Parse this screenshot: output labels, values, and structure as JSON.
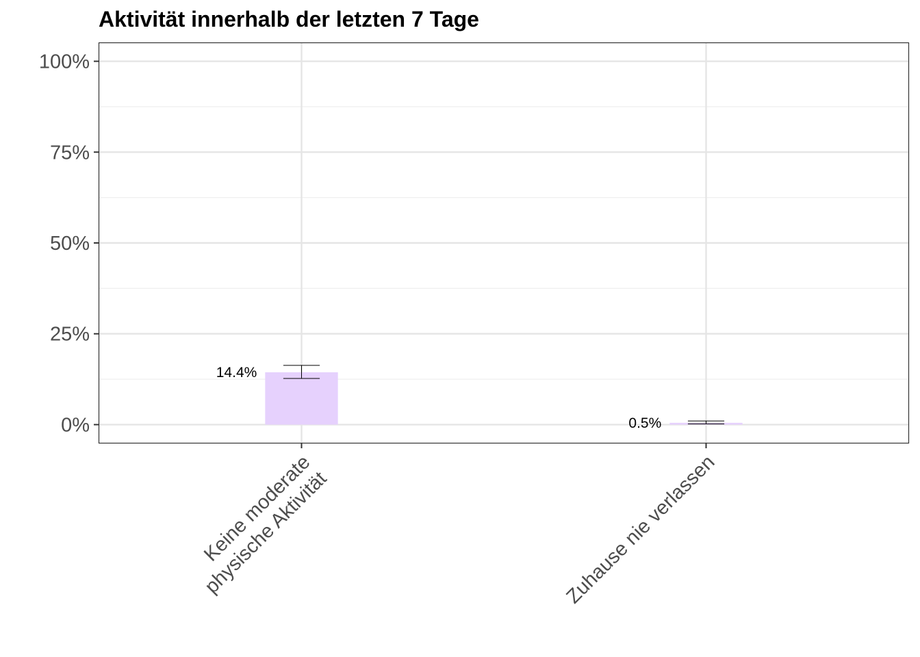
{
  "chart_data": {
    "type": "bar",
    "title": "Aktivität innerhalb der letzten 7 Tage",
    "xlabel": "",
    "ylabel": "",
    "categories": [
      [
        "Keine moderate",
        "physische Aktivität"
      ],
      [
        "Zuhause nie verlassen"
      ]
    ],
    "values": [
      14.4,
      0.5
    ],
    "error_low": [
      12.7,
      0.2
    ],
    "error_high": [
      16.3,
      1.0
    ],
    "data_labels": [
      "14.4%",
      "0.5%"
    ],
    "ylim": [
      -5,
      105
    ],
    "yticks": [
      0,
      25,
      50,
      75,
      100
    ],
    "ytick_labels": [
      "0%",
      "25%",
      "50%",
      "75%",
      "100%"
    ],
    "grid": true,
    "legend": "none",
    "colors": {
      "bar": "#e6d1fd",
      "grid_major": "#e5e5e5",
      "grid_minor": "#efefef",
      "axis": "#333333",
      "text": "#4d4d4d"
    }
  }
}
